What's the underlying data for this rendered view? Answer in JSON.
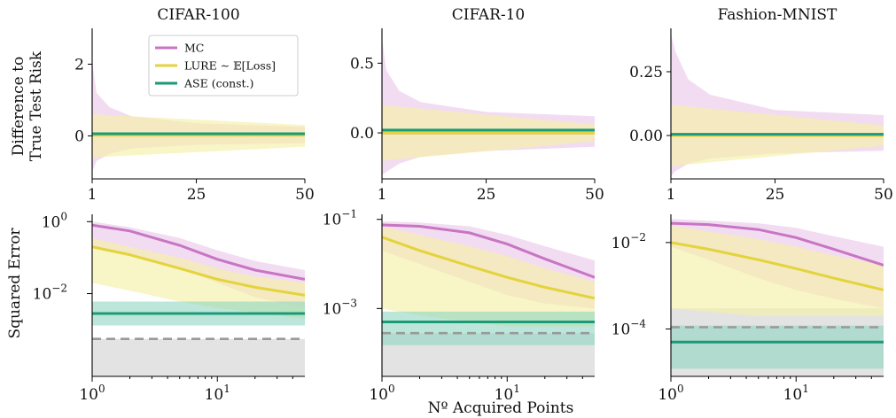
{
  "figure": {
    "ylabel_top": [
      "Difference to",
      "True Test Risk"
    ],
    "ylabel_bottom": "Squared Error",
    "xlabel_bottom": "Nº Acquired Points"
  },
  "legend": {
    "placement": "in first top panel, top-right",
    "entries": [
      {
        "label": "MC",
        "color": "#c875c4"
      },
      {
        "label": "LURE ∼ 𝔼[Loss]",
        "color": "#e3d33c"
      },
      {
        "label": "ASE (const.)",
        "color": "#1a9a78"
      }
    ]
  },
  "colors": {
    "mc": "#c875c4",
    "mc_band": "#e8bfe6",
    "lure": "#e3d33c",
    "lure_band": "#f5efa8",
    "ase": "#1a9a78",
    "ase_band": "#8fd6bf",
    "baseline": "#999999",
    "baseline_band": "#d9d9d9"
  },
  "chart_data": [
    {
      "type": "line",
      "title": "CIFAR-100",
      "row": "difference",
      "x": [
        1,
        50
      ],
      "xticks": [
        "1",
        "25",
        "50"
      ],
      "ylim": [
        -1.2,
        3.0
      ],
      "yticks": [
        "0",
        "2"
      ],
      "series": [
        {
          "name": "MC",
          "mean": [
            0.05,
            0.05
          ],
          "band_upper_x": [
            1,
            2,
            5,
            10,
            25,
            50
          ],
          "band_upper": [
            2.1,
            1.2,
            0.8,
            0.55,
            0.35,
            0.25
          ],
          "band_lower": [
            -1.0,
            -0.7,
            -0.5,
            -0.35,
            -0.25,
            -0.2
          ]
        },
        {
          "name": "LURE ∼ 𝔼[Loss]",
          "mean": [
            0.02,
            0.02
          ],
          "band_upper": [
            0.6,
            0.3
          ],
          "band_lower": [
            -0.6,
            -0.3
          ]
        },
        {
          "name": "ASE (const.)",
          "mean": [
            0.06,
            0.06
          ]
        }
      ]
    },
    {
      "type": "line",
      "title": "CIFAR-10",
      "row": "difference",
      "x": [
        1,
        50
      ],
      "xticks": [
        "1",
        "25",
        "50"
      ],
      "ylim": [
        -0.33,
        0.75
      ],
      "yticks": [
        "0.0",
        "0.5"
      ],
      "series": [
        {
          "name": "MC",
          "mean": [
            0.0,
            0.0
          ],
          "band_upper_x": [
            1,
            2,
            5,
            10,
            25,
            50
          ],
          "band_upper": [
            0.68,
            0.45,
            0.3,
            0.22,
            0.15,
            0.12
          ],
          "band_lower": [
            -0.3,
            -0.28,
            -0.22,
            -0.17,
            -0.13,
            -0.1
          ]
        },
        {
          "name": "LURE ∼ 𝔼[Loss]",
          "mean": [
            0.0,
            0.0
          ],
          "band_upper": [
            0.2,
            0.06
          ],
          "band_lower": [
            -0.2,
            -0.06
          ]
        },
        {
          "name": "ASE (const.)",
          "mean": [
            0.02,
            0.02
          ]
        }
      ]
    },
    {
      "type": "line",
      "title": "Fashion-MNIST",
      "row": "difference",
      "x": [
        1,
        50
      ],
      "xticks": [
        "1",
        "25",
        "50"
      ],
      "ylim": [
        -0.17,
        0.42
      ],
      "yticks": [
        "0.00",
        "0.25"
      ],
      "series": [
        {
          "name": "MC",
          "mean": [
            0.0,
            0.0
          ],
          "band_upper_x": [
            1,
            2,
            5,
            10,
            25,
            50
          ],
          "band_upper": [
            0.4,
            0.33,
            0.22,
            0.16,
            0.1,
            0.08
          ],
          "band_lower": [
            -0.16,
            -0.14,
            -0.11,
            -0.09,
            -0.07,
            -0.06
          ]
        },
        {
          "name": "LURE ∼ 𝔼[Loss]",
          "mean": [
            0.0,
            0.0
          ],
          "band_upper": [
            0.12,
            0.04
          ],
          "band_lower": [
            -0.12,
            -0.04
          ]
        },
        {
          "name": "ASE (const.)",
          "mean": [
            0.005,
            0.005
          ]
        }
      ]
    },
    {
      "type": "line",
      "scale": "log-log",
      "row": "squared-error",
      "x": [
        1,
        50
      ],
      "xticks": [
        {
          "base": "10",
          "exp": "0",
          "value": 1
        },
        {
          "base": "10",
          "exp": "1",
          "value": 10
        }
      ],
      "ylim": [
        5e-05,
        1.6
      ],
      "yticks": [
        {
          "base": "10",
          "exp": "0",
          "value": 1
        },
        {
          "base": "10",
          "exp": "−2",
          "value": 0.01
        }
      ],
      "series": [
        {
          "name": "MC",
          "x": [
            1,
            2,
            5,
            10,
            20,
            50
          ],
          "mean": [
            0.8,
            0.55,
            0.22,
            0.09,
            0.045,
            0.025
          ],
          "band_upper": [
            1.0,
            0.7,
            0.35,
            0.16,
            0.08,
            0.045
          ],
          "band_lower": [
            0.2,
            0.12,
            0.05,
            0.02,
            0.008,
            0.004
          ]
        },
        {
          "name": "LURE ∼ 𝔼[Loss]",
          "x": [
            1,
            2,
            5,
            10,
            20,
            50
          ],
          "mean": [
            0.2,
            0.12,
            0.05,
            0.025,
            0.015,
            0.009
          ],
          "band_upper": [
            0.35,
            0.2,
            0.1,
            0.05,
            0.03,
            0.02
          ],
          "band_lower": [
            0.02,
            0.012,
            0.006,
            0.004,
            0.003,
            0.002
          ]
        },
        {
          "name": "ASE (const.)",
          "x": [
            1,
            50
          ],
          "mean": [
            0.0028,
            0.0028
          ],
          "band_upper": [
            0.006,
            0.006
          ],
          "band_lower": [
            0.0013,
            0.0013
          ]
        },
        {
          "name": "baseline",
          "style": "dashed",
          "x": [
            1,
            50
          ],
          "mean": [
            0.00055,
            0.00055
          ],
          "band_upper": [
            0.00055,
            0.00055
          ],
          "band_lower": [
            5e-05,
            5e-05
          ]
        }
      ]
    },
    {
      "type": "line",
      "scale": "log-log",
      "row": "squared-error",
      "x": [
        1,
        50
      ],
      "xticks": [
        {
          "base": "10",
          "exp": "0",
          "value": 1
        },
        {
          "base": "10",
          "exp": "1",
          "value": 10
        }
      ],
      "ylim": [
        3e-05,
        0.13
      ],
      "yticks": [
        {
          "base": "10",
          "exp": "−1",
          "value": 0.1
        },
        {
          "base": "10",
          "exp": "−3",
          "value": 0.001
        }
      ],
      "series": [
        {
          "name": "MC",
          "x": [
            1,
            2,
            5,
            10,
            20,
            50
          ],
          "mean": [
            0.075,
            0.07,
            0.05,
            0.028,
            0.013,
            0.005
          ],
          "band_upper": [
            0.09,
            0.085,
            0.07,
            0.045,
            0.025,
            0.012
          ],
          "band_lower": [
            0.02,
            0.01,
            0.004,
            0.002,
            0.0013,
            0.001
          ]
        },
        {
          "name": "LURE ∼ 𝔼[Loss]",
          "x": [
            1,
            2,
            5,
            10,
            20,
            50
          ],
          "mean": [
            0.04,
            0.02,
            0.009,
            0.005,
            0.003,
            0.0017
          ],
          "band_upper": [
            0.07,
            0.045,
            0.025,
            0.015,
            0.008,
            0.004
          ],
          "band_lower": [
            0.001,
            0.0007,
            0.0005,
            0.0004,
            0.0004,
            0.0004
          ]
        },
        {
          "name": "ASE (const.)",
          "x": [
            1,
            50
          ],
          "mean": [
            0.0005,
            0.0005
          ],
          "band_upper": [
            0.00085,
            0.00085
          ],
          "band_lower": [
            0.00015,
            0.00015
          ]
        },
        {
          "name": "baseline",
          "style": "dashed",
          "x": [
            1,
            50
          ],
          "mean": [
            0.00028,
            0.00028
          ],
          "band_upper": [
            0.00028,
            0.00028
          ],
          "band_lower": [
            3e-05,
            3e-05
          ]
        }
      ]
    },
    {
      "type": "line",
      "scale": "log-log",
      "row": "squared-error",
      "x": [
        1,
        50
      ],
      "xticks": [
        {
          "base": "10",
          "exp": "0",
          "value": 1
        },
        {
          "base": "10",
          "exp": "1",
          "value": 10
        }
      ],
      "ylim": [
        8e-06,
        0.045
      ],
      "yticks": [
        {
          "base": "10",
          "exp": "−2",
          "value": 0.01
        },
        {
          "base": "10",
          "exp": "−4",
          "value": 0.0001
        }
      ],
      "series": [
        {
          "name": "MC",
          "x": [
            1,
            2,
            5,
            10,
            20,
            50
          ],
          "mean": [
            0.028,
            0.026,
            0.02,
            0.013,
            0.007,
            0.003
          ],
          "band_upper": [
            0.035,
            0.032,
            0.028,
            0.022,
            0.014,
            0.008
          ],
          "band_lower": [
            0.008,
            0.004,
            0.0015,
            0.0008,
            0.0005,
            0.0003
          ]
        },
        {
          "name": "LURE ∼ 𝔼[Loss]",
          "x": [
            1,
            2,
            5,
            10,
            20,
            50
          ],
          "mean": [
            0.01,
            0.007,
            0.004,
            0.0025,
            0.0015,
            0.0008
          ],
          "band_upper": [
            0.025,
            0.018,
            0.012,
            0.008,
            0.005,
            0.003
          ],
          "band_lower": [
            0.0003,
            0.00025,
            0.0002,
            0.0002,
            0.0002,
            0.0002
          ]
        },
        {
          "name": "ASE (const.)",
          "x": [
            1,
            50
          ],
          "mean": [
            5e-05,
            5e-05
          ],
          "band_upper": [
            0.00012,
            0.00012
          ],
          "band_lower": [
            1.2e-05,
            1.2e-05
          ]
        },
        {
          "name": "baseline",
          "style": "dashed",
          "x": [
            1,
            50
          ],
          "mean": [
            0.00011,
            0.00011
          ],
          "band_upper": [
            0.0003,
            0.0003
          ],
          "band_lower": [
            8e-06,
            8e-06
          ]
        }
      ]
    }
  ]
}
